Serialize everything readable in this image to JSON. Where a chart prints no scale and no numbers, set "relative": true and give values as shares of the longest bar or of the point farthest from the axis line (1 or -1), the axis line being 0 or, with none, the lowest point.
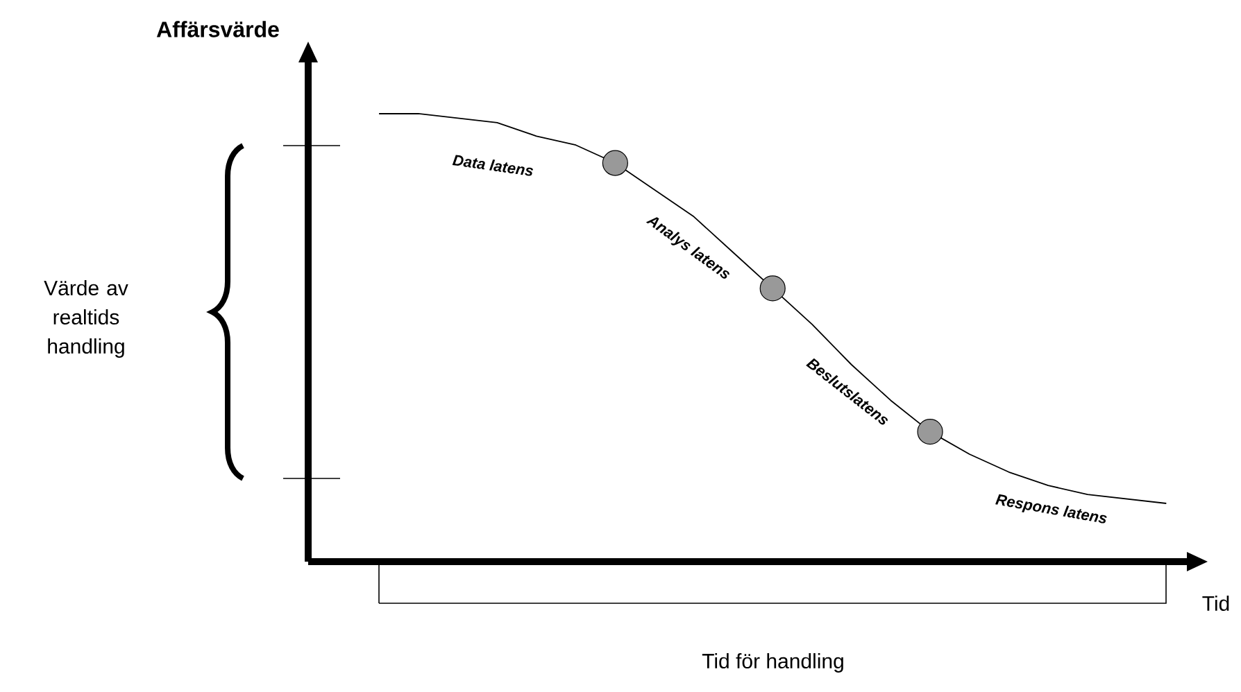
{
  "chart_data": {
    "type": "line",
    "relative": true,
    "xlabel": "Tid",
    "ylabel": "Affärsvärde",
    "categories": [
      null,
      null,
      null,
      null,
      null,
      null,
      null,
      null,
      null,
      null,
      null,
      null,
      null,
      null,
      null,
      null,
      null,
      null,
      null,
      null,
      null
    ],
    "series": [
      {
        "color": "#000000",
        "values": [
          1.0,
          1.0,
          0.99,
          0.98,
          0.95,
          0.93,
          0.89,
          0.83,
          0.77,
          0.69,
          0.61,
          0.53,
          0.44,
          0.36,
          0.29,
          0.24,
          0.2,
          0.17,
          0.15,
          0.14,
          0.13
        ]
      }
    ],
    "annotations": [
      "Data latens",
      "Analys latens",
      "Beslutslatens",
      "Respons latens",
      "Värde av realtids handling",
      "Tid för handling"
    ]
  }
}
